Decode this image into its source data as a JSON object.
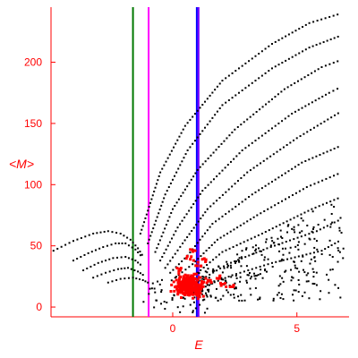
{
  "chart_data": {
    "type": "scatter",
    "xlabel": "E",
    "ylabel": "<M>",
    "xlim": [
      -4.9,
      7.1
    ],
    "ylim": [
      -8,
      245
    ],
    "x_ticks": [
      0,
      5
    ],
    "y_ticks": [
      0,
      50,
      100,
      150,
      200
    ],
    "grid": false,
    "legend": "none",
    "vertical_lines": [
      {
        "x": -1.6,
        "color": "#007700"
      },
      {
        "x": -0.97,
        "color": "#ff00ff"
      },
      {
        "x": 0.97,
        "color": "#0000ff"
      },
      {
        "x": 1.04,
        "color": "#7700ff"
      }
    ],
    "series": [
      {
        "color": "#000000",
        "curves": [
          {
            "t": [
              [
                -4.8,
                46
              ],
              [
                -4,
                54
              ],
              [
                -3.2,
                60
              ],
              [
                -2.6,
                62
              ],
              [
                -2.1,
                60
              ],
              [
                -1.7,
                55
              ],
              [
                -1.4,
                48
              ],
              [
                -1.15,
                40
              ]
            ]
          },
          {
            "t": [
              [
                -4,
                38
              ],
              [
                -3.4,
                44
              ],
              [
                -2.8,
                49
              ],
              [
                -2.3,
                52
              ],
              [
                -1.9,
                52
              ],
              [
                -1.5,
                47
              ],
              [
                -1.2,
                40
              ]
            ]
          },
          {
            "t": [
              [
                -3.6,
                30
              ],
              [
                -3,
                36
              ],
              [
                -2.4,
                40
              ],
              [
                -1.9,
                41
              ],
              [
                -1.5,
                38
              ],
              [
                -1.2,
                33
              ]
            ]
          },
          {
            "t": [
              [
                -3.2,
                24
              ],
              [
                -2.7,
                28
              ],
              [
                -2.2,
                31
              ],
              [
                -1.8,
                32
              ],
              [
                -1.4,
                29
              ],
              [
                -1.1,
                25
              ]
            ]
          },
          {
            "t": [
              [
                -2.6,
                20
              ],
              [
                -2.1,
                23
              ],
              [
                -1.6,
                24
              ],
              [
                -1.2,
                22
              ],
              [
                -0.9,
                19
              ]
            ]
          },
          {
            "t": [
              [
                -1.3,
                60
              ],
              [
                -0.5,
                110
              ],
              [
                0.5,
                148
              ],
              [
                2,
                185
              ],
              [
                4,
                215
              ],
              [
                5.5,
                232
              ],
              [
                6.8,
                240
              ]
            ]
          },
          {
            "t": [
              [
                -1,
                52
              ],
              [
                -0.3,
                92
              ],
              [
                0.6,
                128
              ],
              [
                2,
                165
              ],
              [
                4,
                195
              ],
              [
                5.5,
                212
              ],
              [
                6.8,
                222
              ]
            ]
          },
          {
            "t": [
              [
                -0.7,
                45
              ],
              [
                0,
                80
              ],
              [
                1,
                112
              ],
              [
                2.5,
                145
              ],
              [
                4.5,
                178
              ],
              [
                6,
                196
              ],
              [
                6.8,
                202
              ]
            ]
          },
          {
            "t": [
              [
                -0.5,
                38
              ],
              [
                0.2,
                65
              ],
              [
                1.2,
                95
              ],
              [
                2.8,
                128
              ],
              [
                4.8,
                158
              ],
              [
                6.3,
                175
              ],
              [
                6.8,
                180
              ]
            ]
          },
          {
            "t": [
              [
                -0.3,
                32
              ],
              [
                0.4,
                52
              ],
              [
                1.4,
                80
              ],
              [
                3,
                110
              ],
              [
                5,
                138
              ],
              [
                6.8,
                160
              ]
            ]
          },
          {
            "t": [
              [
                -0.1,
                28
              ],
              [
                0.6,
                42
              ],
              [
                1.6,
                68
              ],
              [
                3.2,
                92
              ],
              [
                5.2,
                118
              ],
              [
                6.8,
                132
              ]
            ]
          },
          {
            "t": [
              [
                0.1,
                24
              ],
              [
                0.8,
                35
              ],
              [
                1.8,
                55
              ],
              [
                3.4,
                75
              ],
              [
                5.4,
                98
              ],
              [
                6.8,
                110
              ]
            ]
          },
          {
            "t": [
              [
                0.3,
                20
              ],
              [
                1,
                28
              ],
              [
                2,
                45
              ],
              [
                3.6,
                60
              ],
              [
                5.6,
                80
              ],
              [
                6.8,
                90
              ]
            ]
          },
          {
            "t": [
              [
                0.4,
                15
              ],
              [
                1.2,
                23
              ],
              [
                2.2,
                35
              ],
              [
                3.8,
                48
              ],
              [
                5.8,
                62
              ],
              [
                6.8,
                72
              ]
            ]
          },
          {
            "t": [
              [
                0.6,
                12
              ],
              [
                1.4,
                18
              ],
              [
                2.4,
                26
              ],
              [
                4,
                36
              ],
              [
                6,
                46
              ],
              [
                6.8,
                55
              ]
            ]
          }
        ],
        "scatter_region": {
          "x": [
            0.8,
            6.9
          ],
          "y": [
            5,
            95
          ]
        },
        "low_cluster": {
          "x": [
            -1.2,
            1.5
          ],
          "y": [
            -5,
            25
          ]
        }
      },
      {
        "color": "#ff0000",
        "cluster": {
          "cx": 0.65,
          "cy": 17,
          "sx": 0.55,
          "sy": 8
        },
        "spread": [
          [
            0.2,
            30
          ],
          [
            0.7,
            40
          ],
          [
            1,
            35
          ],
          [
            0.8,
            45
          ],
          [
            1.5,
            20
          ],
          [
            2,
            18
          ],
          [
            1.8,
            25
          ],
          [
            2.4,
            16
          ],
          [
            1.3,
            38
          ]
        ]
      }
    ]
  }
}
